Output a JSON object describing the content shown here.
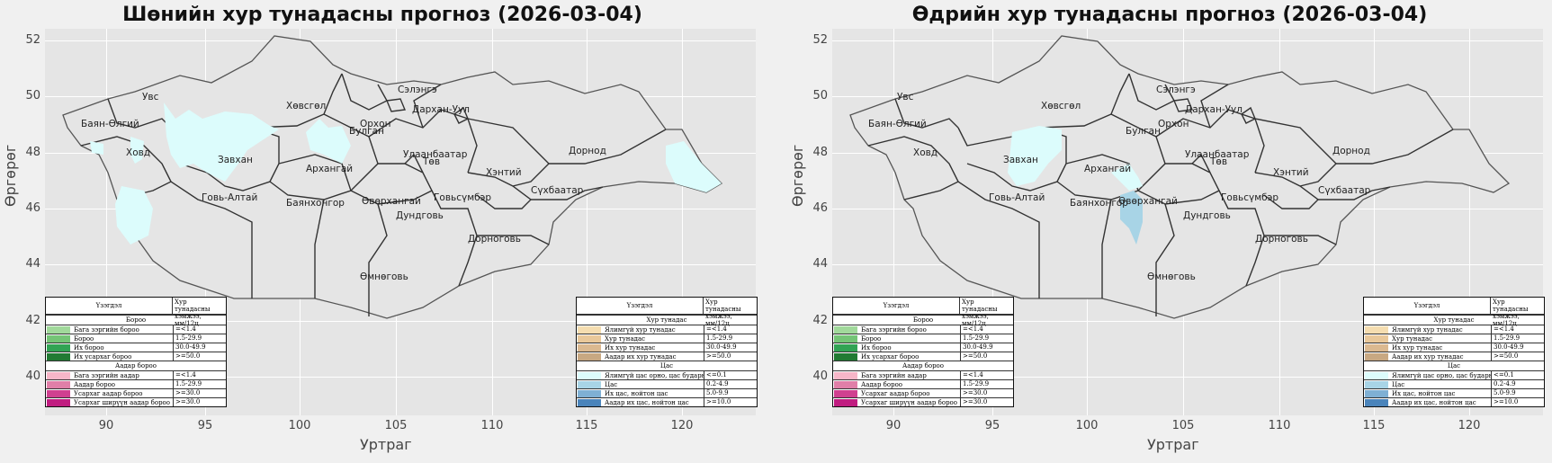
{
  "left_title": "Шөнийн хур тунадасны прогноз (2026-03-04)",
  "right_title": "Өдрийн хур тунадасны прогноз (2026-03-04)",
  "xlabel": "Уртраг",
  "ylabel": "Өргөрөг",
  "x_ticks": [
    "90",
    "95",
    "100",
    "105",
    "110",
    "115",
    "120"
  ],
  "y_ticks": [
    "52",
    "50",
    "48",
    "46",
    "44",
    "42",
    "40"
  ],
  "aimags_left": [
    "Увс",
    "Хөвсгөл",
    "Сэлэнгэ",
    "Баян-Өлгий",
    "Орхон",
    "Дархан-Уул",
    "Булган",
    "Ховд",
    "Завхан",
    "Архангай",
    "Улаанбаатар",
    "Төв",
    "Дорнод",
    "Хэнтий",
    "Говь-Алтай",
    "Сүхбаатар",
    "Говьсүмбэр",
    "Баянхонгор",
    "Өвөрхангай",
    "Дундговь",
    "Дорноговь",
    "Өмнөговь"
  ],
  "aimags_right": [
    "Увс",
    "Сэлэнгэ",
    "Хөвсгөл",
    "Дархан-Уул",
    "Баян-Өлгий",
    "Орхон",
    "Булган",
    "Ховд",
    "Завхан",
    "Улаанбаатар",
    "Дорнод",
    "Архангай",
    "Төв",
    "Хэнтий",
    "Говь-Алтай",
    "Сүхбаатар",
    "Баянхонгор",
    "Өвөрхангай",
    "Говьсүмбэр",
    "Дундговь",
    "Дорноговь",
    "Өмнөговь"
  ],
  "legend_rain": {
    "col1": "Үзэгдэл",
    "col2": "Хур тунадасны хэмжээ, мм/12ц",
    "sec1": "Бороо",
    "rows1": [
      {
        "name": "Бага зэргийн бороо",
        "val": "=<1.4",
        "color": "#a1d99b"
      },
      {
        "name": "Бороо",
        "val": "1.5-29.9",
        "color": "#74c476"
      },
      {
        "name": "Их бороо",
        "val": "30.0-49.9",
        "color": "#31a354"
      },
      {
        "name": "Их усархаг бороо",
        "val": ">=50.0",
        "color": "#217a33"
      }
    ],
    "sec2": "Аадар бороо",
    "rows2": [
      {
        "name": "Бага зэргийн аадар",
        "val": "=<1.4",
        "color": "#f7b6c8"
      },
      {
        "name": "Аадар бороо",
        "val": "1.5-29.9",
        "color": "#e07fa8"
      },
      {
        "name": "Усархаг аадар бороо",
        "val": ">=30.0",
        "color": "#d04090"
      },
      {
        "name": "Усархаг ширүүн аадар бороо",
        "val": ">=30.0",
        "color": "#c01c80"
      }
    ]
  },
  "legend_snow": {
    "col1": "Үзэгдэл",
    "col2": "Хур тунадасны хэмжээ, мм/12ц",
    "sec1": "Хур тунадас",
    "rows1": [
      {
        "name": "Ялимгүй хур тунадас",
        "val": "=<1.4",
        "color": "#f5ddb0"
      },
      {
        "name": "Хур тунадас",
        "val": "1.5-29.9",
        "color": "#e9c89a"
      },
      {
        "name": "Их хур тунадас",
        "val": "30.0-49.9",
        "color": "#dbb990"
      },
      {
        "name": "Аадар их хур тунадас",
        "val": ">=50.0",
        "color": "#c8a882"
      }
    ],
    "sec2": "Цас",
    "rows2": [
      {
        "name": "Ялимгүй цас орно, цас бударна, хялмаална",
        "val": "<=0.1",
        "color": "#dcfcfc"
      },
      {
        "name": "Цас",
        "val": "0.2-4.9",
        "color": "#a8d4e6"
      },
      {
        "name": "Их цас, нойтон цас",
        "val": "5.0-9.9",
        "color": "#7fb0d4"
      },
      {
        "name": "Аадар их цас, нойтон цас",
        "val": ">=10.0",
        "color": "#4a84bb"
      }
    ]
  },
  "colors": {
    "snow_light": "#dcfcfc",
    "snow": "#a8d4e6",
    "land": "#e5e5e5",
    "border": "#555555"
  }
}
